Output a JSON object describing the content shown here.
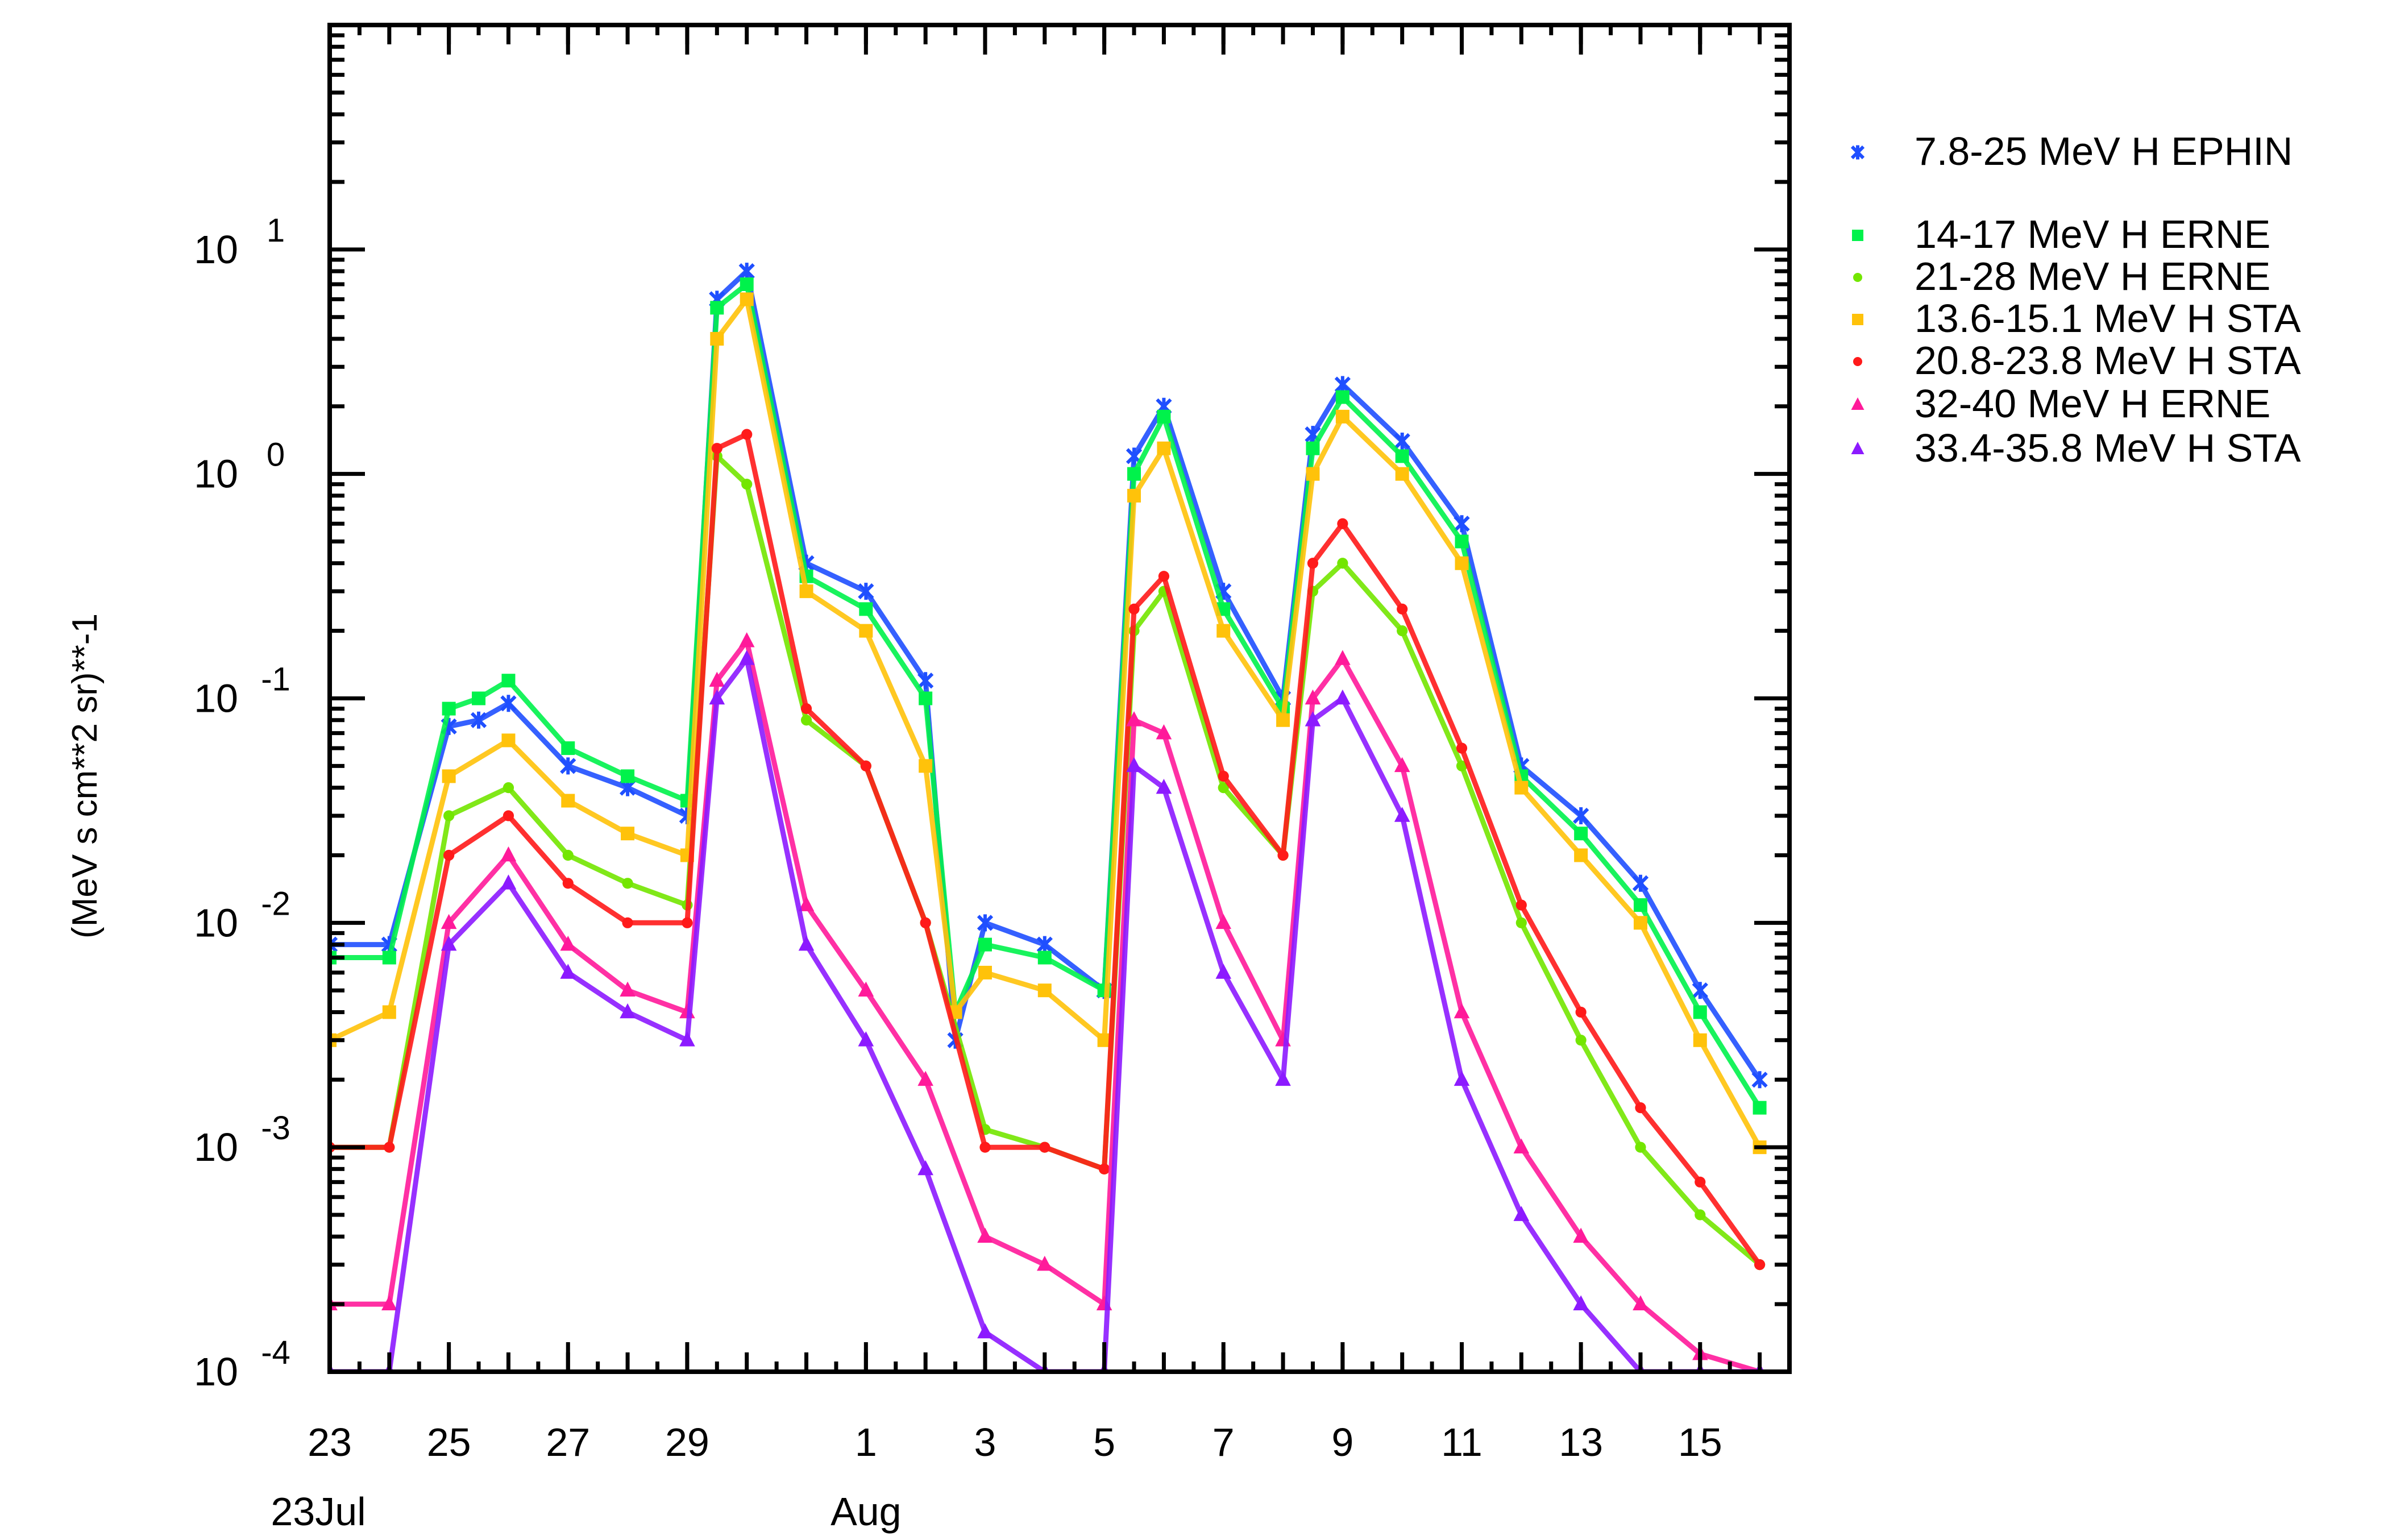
{
  "chart_data": {
    "type": "scatter",
    "title": "",
    "xlabel": "",
    "ylabel": "(MeV s cm**2 sr)**-1",
    "x_range": [
      "2025-07-23",
      "2025-08-16T12:00"
    ],
    "y_range": [
      0.0001,
      100
    ],
    "y_scale": "log",
    "grid": false,
    "legend_position": "right",
    "x_tick_labels": [
      "23",
      "25",
      "27",
      "29",
      "1",
      "3",
      "5",
      "7",
      "9",
      "11",
      "13",
      "15"
    ],
    "x_tick_dates": [
      "2025-07-23",
      "2025-07-25",
      "2025-07-27",
      "2025-07-29",
      "2025-08-01",
      "2025-08-03",
      "2025-08-05",
      "2025-08-07",
      "2025-08-09",
      "2025-08-11",
      "2025-08-13",
      "2025-08-15"
    ],
    "x_sub_labels": [
      {
        "date": "2025-07-23",
        "label": "23Jul"
      },
      {
        "date": "2025-08-01",
        "label": "Aug"
      }
    ],
    "y_tick_labels": [
      {
        "value": 10,
        "base": "10",
        "exp": "1"
      },
      {
        "value": 1,
        "base": "10",
        "exp": "0"
      },
      {
        "value": 0.1,
        "base": "10",
        "exp": "-1"
      },
      {
        "value": 0.01,
        "base": "10",
        "exp": "-2"
      },
      {
        "value": 0.001,
        "base": "10",
        "exp": "-3"
      },
      {
        "value": 0.0001,
        "base": "10",
        "exp": "-4"
      }
    ],
    "series": [
      {
        "name": "7.8-25 MeV H EPHIN",
        "color": "#1f4fff",
        "marker": "cross",
        "points": [
          {
            "x": "2025-07-23",
            "y": 0.008
          },
          {
            "x": "2025-07-24",
            "y": 0.008
          },
          {
            "x": "2025-07-25",
            "y": 0.075
          },
          {
            "x": "2025-07-25T12:00",
            "y": 0.08
          },
          {
            "x": "2025-07-26",
            "y": 0.095
          },
          {
            "x": "2025-07-27",
            "y": 0.05
          },
          {
            "x": "2025-07-28",
            "y": 0.04
          },
          {
            "x": "2025-07-29",
            "y": 0.03
          },
          {
            "x": "2025-07-29T12:00",
            "y": 6.0
          },
          {
            "x": "2025-07-30",
            "y": 8.0
          },
          {
            "x": "2025-07-31",
            "y": 0.4
          },
          {
            "x": "2025-08-01",
            "y": 0.3
          },
          {
            "x": "2025-08-02",
            "y": 0.12
          },
          {
            "x": "2025-08-02T12:00",
            "y": 0.003
          },
          {
            "x": "2025-08-03",
            "y": 0.01
          },
          {
            "x": "2025-08-04",
            "y": 0.008
          },
          {
            "x": "2025-08-05",
            "y": 0.005
          },
          {
            "x": "2025-08-05T12:00",
            "y": 1.2
          },
          {
            "x": "2025-08-06",
            "y": 2.0
          },
          {
            "x": "2025-08-07",
            "y": 0.3
          },
          {
            "x": "2025-08-08",
            "y": 0.1
          },
          {
            "x": "2025-08-08T12:00",
            "y": 1.5
          },
          {
            "x": "2025-08-09",
            "y": 2.5
          },
          {
            "x": "2025-08-10",
            "y": 1.4
          },
          {
            "x": "2025-08-11",
            "y": 0.6
          },
          {
            "x": "2025-08-12",
            "y": 0.05
          },
          {
            "x": "2025-08-13",
            "y": 0.03
          },
          {
            "x": "2025-08-14",
            "y": 0.015
          },
          {
            "x": "2025-08-15",
            "y": 0.005
          },
          {
            "x": "2025-08-16",
            "y": 0.002
          }
        ]
      },
      {
        "name": "14-17 MeV H ERNE",
        "color": "#00f24b",
        "marker": "square",
        "points": [
          {
            "x": "2025-07-23",
            "y": 0.007
          },
          {
            "x": "2025-07-24",
            "y": 0.007
          },
          {
            "x": "2025-07-25",
            "y": 0.09
          },
          {
            "x": "2025-07-25T12:00",
            "y": 0.1
          },
          {
            "x": "2025-07-26",
            "y": 0.12
          },
          {
            "x": "2025-07-27",
            "y": 0.06
          },
          {
            "x": "2025-07-28",
            "y": 0.045
          },
          {
            "x": "2025-07-29",
            "y": 0.035
          },
          {
            "x": "2025-07-29T12:00",
            "y": 5.5
          },
          {
            "x": "2025-07-30",
            "y": 7.0
          },
          {
            "x": "2025-07-31",
            "y": 0.35
          },
          {
            "x": "2025-08-01",
            "y": 0.25
          },
          {
            "x": "2025-08-02",
            "y": 0.1
          },
          {
            "x": "2025-08-02T12:00",
            "y": 0.004
          },
          {
            "x": "2025-08-03",
            "y": 0.008
          },
          {
            "x": "2025-08-04",
            "y": 0.007
          },
          {
            "x": "2025-08-05",
            "y": 0.005
          },
          {
            "x": "2025-08-05T12:00",
            "y": 1.0
          },
          {
            "x": "2025-08-06",
            "y": 1.8
          },
          {
            "x": "2025-08-07",
            "y": 0.25
          },
          {
            "x": "2025-08-08",
            "y": 0.09
          },
          {
            "x": "2025-08-08T12:00",
            "y": 1.3
          },
          {
            "x": "2025-08-09",
            "y": 2.2
          },
          {
            "x": "2025-08-10",
            "y": 1.2
          },
          {
            "x": "2025-08-11",
            "y": 0.5
          },
          {
            "x": "2025-08-12",
            "y": 0.045
          },
          {
            "x": "2025-08-13",
            "y": 0.025
          },
          {
            "x": "2025-08-14",
            "y": 0.012
          },
          {
            "x": "2025-08-15",
            "y": 0.004
          },
          {
            "x": "2025-08-16",
            "y": 0.0015
          }
        ]
      },
      {
        "name": "21-28 MeV H ERNE",
        "color": "#73e600",
        "marker": "dot",
        "points": [
          {
            "x": "2025-07-23",
            "y": 0.001
          },
          {
            "x": "2025-07-24",
            "y": 0.001
          },
          {
            "x": "2025-07-25",
            "y": 0.03
          },
          {
            "x": "2025-07-26",
            "y": 0.04
          },
          {
            "x": "2025-07-27",
            "y": 0.02
          },
          {
            "x": "2025-07-28",
            "y": 0.015
          },
          {
            "x": "2025-07-29",
            "y": 0.012
          },
          {
            "x": "2025-07-29T12:00",
            "y": 1.2
          },
          {
            "x": "2025-07-30",
            "y": 0.9
          },
          {
            "x": "2025-07-31",
            "y": 0.08
          },
          {
            "x": "2025-08-01",
            "y": 0.05
          },
          {
            "x": "2025-08-02",
            "y": 0.01
          },
          {
            "x": "2025-08-03",
            "y": 0.0012
          },
          {
            "x": "2025-08-04",
            "y": 0.001
          },
          {
            "x": "2025-08-05",
            "y": 0.0008
          },
          {
            "x": "2025-08-05T12:00",
            "y": 0.2
          },
          {
            "x": "2025-08-06",
            "y": 0.3
          },
          {
            "x": "2025-08-07",
            "y": 0.04
          },
          {
            "x": "2025-08-08",
            "y": 0.02
          },
          {
            "x": "2025-08-08T12:00",
            "y": 0.3
          },
          {
            "x": "2025-08-09",
            "y": 0.4
          },
          {
            "x": "2025-08-10",
            "y": 0.2
          },
          {
            "x": "2025-08-11",
            "y": 0.05
          },
          {
            "x": "2025-08-12",
            "y": 0.01
          },
          {
            "x": "2025-08-13",
            "y": 0.003
          },
          {
            "x": "2025-08-14",
            "y": 0.001
          },
          {
            "x": "2025-08-15",
            "y": 0.0005
          },
          {
            "x": "2025-08-16",
            "y": 0.0003
          }
        ]
      },
      {
        "name": "13.6-15.1 MeV H STA",
        "color": "#ffc20a",
        "marker": "square",
        "points": [
          {
            "x": "2025-07-23",
            "y": 0.003
          },
          {
            "x": "2025-07-24",
            "y": 0.004
          },
          {
            "x": "2025-07-25",
            "y": 0.045
          },
          {
            "x": "2025-07-26",
            "y": 0.065
          },
          {
            "x": "2025-07-27",
            "y": 0.035
          },
          {
            "x": "2025-07-28",
            "y": 0.025
          },
          {
            "x": "2025-07-29",
            "y": 0.02
          },
          {
            "x": "2025-07-29T12:00",
            "y": 4.0
          },
          {
            "x": "2025-07-30",
            "y": 6.0
          },
          {
            "x": "2025-07-31",
            "y": 0.3
          },
          {
            "x": "2025-08-01",
            "y": 0.2
          },
          {
            "x": "2025-08-02",
            "y": 0.05
          },
          {
            "x": "2025-08-02T12:00",
            "y": 0.004
          },
          {
            "x": "2025-08-03",
            "y": 0.006
          },
          {
            "x": "2025-08-04",
            "y": 0.005
          },
          {
            "x": "2025-08-05",
            "y": 0.003
          },
          {
            "x": "2025-08-05T12:00",
            "y": 0.8
          },
          {
            "x": "2025-08-06",
            "y": 1.3
          },
          {
            "x": "2025-08-07",
            "y": 0.2
          },
          {
            "x": "2025-08-08",
            "y": 0.08
          },
          {
            "x": "2025-08-08T12:00",
            "y": 1.0
          },
          {
            "x": "2025-08-09",
            "y": 1.8
          },
          {
            "x": "2025-08-10",
            "y": 1.0
          },
          {
            "x": "2025-08-11",
            "y": 0.4
          },
          {
            "x": "2025-08-12",
            "y": 0.04
          },
          {
            "x": "2025-08-13",
            "y": 0.02
          },
          {
            "x": "2025-08-14",
            "y": 0.01
          },
          {
            "x": "2025-08-15",
            "y": 0.003
          },
          {
            "x": "2025-08-16",
            "y": 0.001
          }
        ]
      },
      {
        "name": "20.8-23.8 MeV H STA",
        "color": "#ff1a1a",
        "marker": "dot",
        "points": [
          {
            "x": "2025-07-23",
            "y": 0.001
          },
          {
            "x": "2025-07-24",
            "y": 0.001
          },
          {
            "x": "2025-07-25",
            "y": 0.02
          },
          {
            "x": "2025-07-26",
            "y": 0.03
          },
          {
            "x": "2025-07-27",
            "y": 0.015
          },
          {
            "x": "2025-07-28",
            "y": 0.01
          },
          {
            "x": "2025-07-29",
            "y": 0.01
          },
          {
            "x": "2025-07-29T12:00",
            "y": 1.3
          },
          {
            "x": "2025-07-30",
            "y": 1.5
          },
          {
            "x": "2025-07-31",
            "y": 0.09
          },
          {
            "x": "2025-08-01",
            "y": 0.05
          },
          {
            "x": "2025-08-02",
            "y": 0.01
          },
          {
            "x": "2025-08-03",
            "y": 0.001
          },
          {
            "x": "2025-08-04",
            "y": 0.001
          },
          {
            "x": "2025-08-05",
            "y": 0.0008
          },
          {
            "x": "2025-08-05T12:00",
            "y": 0.25
          },
          {
            "x": "2025-08-06",
            "y": 0.35
          },
          {
            "x": "2025-08-07",
            "y": 0.045
          },
          {
            "x": "2025-08-08",
            "y": 0.02
          },
          {
            "x": "2025-08-08T12:00",
            "y": 0.4
          },
          {
            "x": "2025-08-09",
            "y": 0.6
          },
          {
            "x": "2025-08-10",
            "y": 0.25
          },
          {
            "x": "2025-08-11",
            "y": 0.06
          },
          {
            "x": "2025-08-12",
            "y": 0.012
          },
          {
            "x": "2025-08-13",
            "y": 0.004
          },
          {
            "x": "2025-08-14",
            "y": 0.0015
          },
          {
            "x": "2025-08-15",
            "y": 0.0007
          },
          {
            "x": "2025-08-16",
            "y": 0.0003
          }
        ]
      },
      {
        "name": "32-40 MeV H ERNE",
        "color": "#ff1a9a",
        "marker": "triangle",
        "points": [
          {
            "x": "2025-07-23",
            "y": 0.0002
          },
          {
            "x": "2025-07-24",
            "y": 0.0002
          },
          {
            "x": "2025-07-25",
            "y": 0.01
          },
          {
            "x": "2025-07-26",
            "y": 0.02
          },
          {
            "x": "2025-07-27",
            "y": 0.008
          },
          {
            "x": "2025-07-28",
            "y": 0.005
          },
          {
            "x": "2025-07-29",
            "y": 0.004
          },
          {
            "x": "2025-07-29T12:00",
            "y": 0.12
          },
          {
            "x": "2025-07-30",
            "y": 0.18
          },
          {
            "x": "2025-07-31",
            "y": 0.012
          },
          {
            "x": "2025-08-01",
            "y": 0.005
          },
          {
            "x": "2025-08-02",
            "y": 0.002
          },
          {
            "x": "2025-08-03",
            "y": 0.0004
          },
          {
            "x": "2025-08-04",
            "y": 0.0003
          },
          {
            "x": "2025-08-05",
            "y": 0.0002
          },
          {
            "x": "2025-08-05T12:00",
            "y": 0.08
          },
          {
            "x": "2025-08-06",
            "y": 0.07
          },
          {
            "x": "2025-08-07",
            "y": 0.01
          },
          {
            "x": "2025-08-08",
            "y": 0.003
          },
          {
            "x": "2025-08-08T12:00",
            "y": 0.1
          },
          {
            "x": "2025-08-09",
            "y": 0.15
          },
          {
            "x": "2025-08-10",
            "y": 0.05
          },
          {
            "x": "2025-08-11",
            "y": 0.004
          },
          {
            "x": "2025-08-12",
            "y": 0.001
          },
          {
            "x": "2025-08-13",
            "y": 0.0004
          },
          {
            "x": "2025-08-14",
            "y": 0.0002
          },
          {
            "x": "2025-08-15",
            "y": 0.00012
          },
          {
            "x": "2025-08-16",
            "y": 0.0001
          }
        ]
      },
      {
        "name": "33.4-35.8 MeV H STA",
        "color": "#8c1aff",
        "marker": "triangle",
        "points": [
          {
            "x": "2025-07-23",
            "y": 0.0001
          },
          {
            "x": "2025-07-24",
            "y": 0.0001
          },
          {
            "x": "2025-07-25",
            "y": 0.008
          },
          {
            "x": "2025-07-26",
            "y": 0.015
          },
          {
            "x": "2025-07-27",
            "y": 0.006
          },
          {
            "x": "2025-07-28",
            "y": 0.004
          },
          {
            "x": "2025-07-29",
            "y": 0.003
          },
          {
            "x": "2025-07-29T12:00",
            "y": 0.1
          },
          {
            "x": "2025-07-30",
            "y": 0.15
          },
          {
            "x": "2025-07-31",
            "y": 0.008
          },
          {
            "x": "2025-08-01",
            "y": 0.003
          },
          {
            "x": "2025-08-02",
            "y": 0.0008
          },
          {
            "x": "2025-08-03",
            "y": 0.00015
          },
          {
            "x": "2025-08-04",
            "y": 0.0001
          },
          {
            "x": "2025-08-05",
            "y": 0.0001
          },
          {
            "x": "2025-08-05T12:00",
            "y": 0.05
          },
          {
            "x": "2025-08-06",
            "y": 0.04
          },
          {
            "x": "2025-08-07",
            "y": 0.006
          },
          {
            "x": "2025-08-08",
            "y": 0.002
          },
          {
            "x": "2025-08-08T12:00",
            "y": 0.08
          },
          {
            "x": "2025-08-09",
            "y": 0.1
          },
          {
            "x": "2025-08-10",
            "y": 0.03
          },
          {
            "x": "2025-08-11",
            "y": 0.002
          },
          {
            "x": "2025-08-12",
            "y": 0.0005
          },
          {
            "x": "2025-08-13",
            "y": 0.0002
          },
          {
            "x": "2025-08-14",
            "y": 0.0001
          },
          {
            "x": "2025-08-15",
            "y": 0.0001
          },
          {
            "x": "2025-08-16",
            "y": 0.0001
          }
        ]
      }
    ],
    "legend": [
      {
        "label": "7.8-25 MeV H EPHIN",
        "color": "#1f4fff",
        "marker": "cross"
      },
      {
        "label": "14-17 MeV H ERNE",
        "color": "#00f24b",
        "marker": "square"
      },
      {
        "label": "21-28 MeV H ERNE",
        "color": "#73e600",
        "marker": "dot"
      },
      {
        "label": "13.6-15.1 MeV H STA",
        "color": "#ffc20a",
        "marker": "square"
      },
      {
        "label": "20.8-23.8 MeV H STA",
        "color": "#ff1a1a",
        "marker": "dot"
      },
      {
        "label": "32-40 MeV H ERNE",
        "color": "#ff1a9a",
        "marker": "triangle"
      },
      {
        "label": "33.4-35.8 MeV H STA",
        "color": "#8c1aff",
        "marker": "triangle"
      }
    ]
  }
}
